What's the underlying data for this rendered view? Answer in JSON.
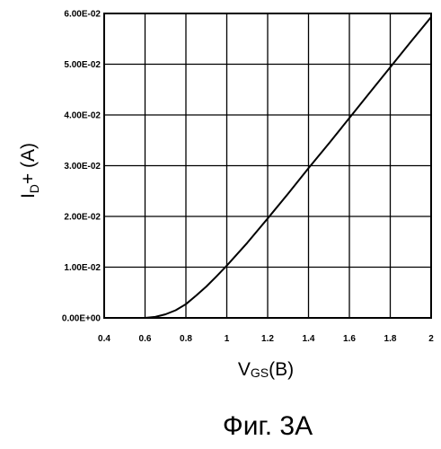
{
  "chart_data": {
    "type": "line",
    "xlabel": {
      "main": "V",
      "sub": "GS",
      "suffix": "(B)"
    },
    "ylabel": {
      "main": "I",
      "sub": "D",
      "suffix": "+ (A)"
    },
    "xlim": [
      0.4,
      2.0
    ],
    "ylim": [
      0,
      0.06
    ],
    "x_ticks": [
      0.4,
      0.6,
      0.8,
      1.0,
      1.2,
      1.4,
      1.6,
      1.8,
      2.0
    ],
    "x_tick_labels": [
      "0.4",
      "0.6",
      "0.8",
      "1",
      "1.2",
      "1.4",
      "1.6",
      "1.8",
      "2"
    ],
    "y_ticks": [
      0,
      0.01,
      0.02,
      0.03,
      0.04,
      0.05,
      0.06
    ],
    "y_tick_labels": [
      "0.00E+00",
      "1.00E-02",
      "2.00E-02",
      "3.00E-02",
      "4.00E-02",
      "5.00E-02",
      "6.00E-02"
    ],
    "grid": true,
    "series": [
      {
        "x": [
          0.4,
          0.5,
          0.6,
          0.65,
          0.7,
          0.75,
          0.8,
          0.85,
          0.9,
          0.95,
          1.0,
          1.1,
          1.2,
          1.3,
          1.4,
          1.5,
          1.6,
          1.7,
          1.8,
          1.9,
          2.0
        ],
        "y": [
          0,
          0,
          0,
          0.0002,
          0.0007,
          0.0015,
          0.0027,
          0.0044,
          0.0062,
          0.0082,
          0.0103,
          0.0148,
          0.0196,
          0.0245,
          0.0295,
          0.0344,
          0.0394,
          0.0444,
          0.0494,
          0.0544,
          0.0593
        ]
      }
    ]
  },
  "caption": "Фиг. 3А"
}
